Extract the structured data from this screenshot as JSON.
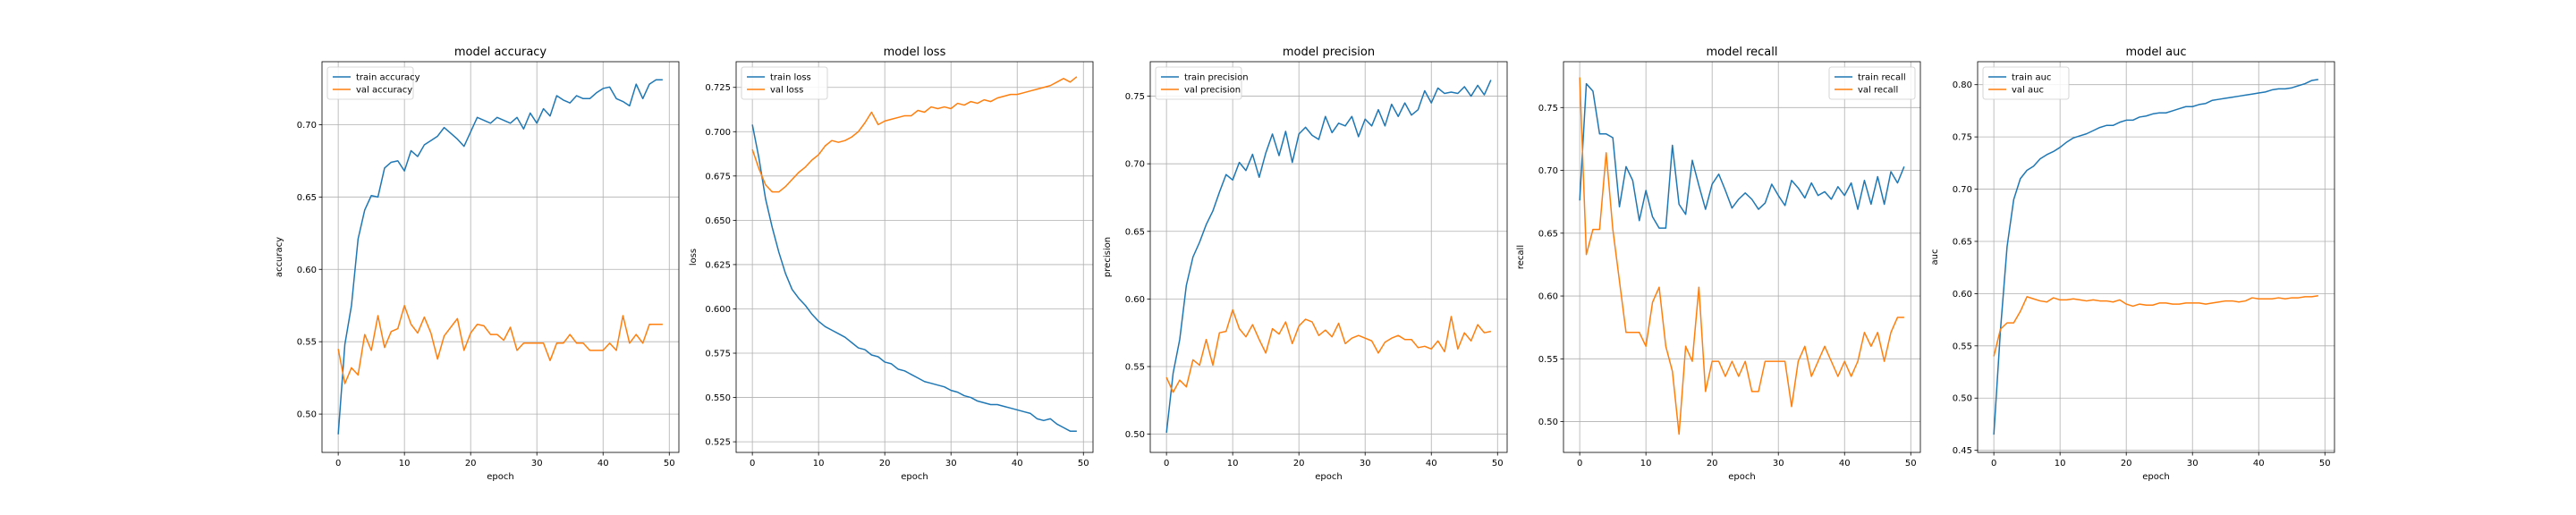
{
  "colors": {
    "train": "#1f77b4",
    "val": "#ff7f0e",
    "grid": "#b0b0b0",
    "axis": "#000000"
  },
  "chart_data": [
    {
      "type": "line",
      "title": "model accuracy",
      "xlabel": "epoch",
      "ylabel": "accuracy",
      "xlim": [
        -2.45,
        51.45
      ],
      "ylim": [
        0.4735,
        0.7435
      ],
      "xticks": [
        0,
        10,
        20,
        30,
        40,
        50
      ],
      "yticks": [
        0.5,
        0.55,
        0.6,
        0.65,
        0.7
      ],
      "ytick_labels": [
        "0.50",
        "0.55",
        "0.60",
        "0.65",
        "0.70"
      ],
      "grid": true,
      "legend": "upper left",
      "x": [
        0,
        1,
        2,
        3,
        4,
        5,
        6,
        7,
        8,
        9,
        10,
        11,
        12,
        13,
        14,
        15,
        16,
        17,
        18,
        19,
        20,
        21,
        22,
        23,
        24,
        25,
        26,
        27,
        28,
        29,
        30,
        31,
        32,
        33,
        34,
        35,
        36,
        37,
        38,
        39,
        40,
        41,
        42,
        43,
        44,
        45,
        46,
        47,
        48,
        49
      ],
      "series": [
        {
          "name": "train accuracy",
          "color_key": "train",
          "values": [
            0.486,
            0.548,
            0.575,
            0.621,
            0.641,
            0.651,
            0.65,
            0.67,
            0.674,
            0.675,
            0.668,
            0.682,
            0.678,
            0.686,
            0.689,
            0.692,
            0.698,
            0.694,
            0.69,
            0.685,
            0.695,
            0.705,
            0.703,
            0.701,
            0.705,
            0.703,
            0.701,
            0.705,
            0.697,
            0.708,
            0.701,
            0.711,
            0.706,
            0.72,
            0.717,
            0.715,
            0.72,
            0.718,
            0.718,
            0.722,
            0.725,
            0.726,
            0.718,
            0.716,
            0.713,
            0.728,
            0.718,
            0.728,
            0.731,
            0.731
          ]
        },
        {
          "name": "val accuracy",
          "color_key": "val",
          "values": [
            0.545,
            0.521,
            0.532,
            0.527,
            0.555,
            0.544,
            0.568,
            0.546,
            0.557,
            0.559,
            0.575,
            0.562,
            0.556,
            0.567,
            0.556,
            0.538,
            0.554,
            0.56,
            0.566,
            0.544,
            0.556,
            0.562,
            0.561,
            0.555,
            0.555,
            0.551,
            0.56,
            0.544,
            0.549,
            0.549,
            0.549,
            0.549,
            0.537,
            0.549,
            0.549,
            0.555,
            0.549,
            0.549,
            0.544,
            0.544,
            0.544,
            0.549,
            0.544,
            0.568,
            0.549,
            0.555,
            0.549,
            0.562,
            0.562,
            0.562
          ]
        }
      ]
    },
    {
      "type": "line",
      "title": "model loss",
      "xlabel": "epoch",
      "ylabel": "loss",
      "xlim": [
        -2.45,
        51.45
      ],
      "ylim": [
        0.519,
        0.7395
      ],
      "xticks": [
        0,
        10,
        20,
        30,
        40,
        50
      ],
      "yticks": [
        0.525,
        0.55,
        0.575,
        0.6,
        0.625,
        0.65,
        0.675,
        0.7,
        0.725
      ],
      "ytick_labels": [
        "0.525",
        "0.550",
        "0.575",
        "0.600",
        "0.625",
        "0.650",
        "0.675",
        "0.700",
        "0.725"
      ],
      "grid": true,
      "legend": "upper left",
      "x": [
        0,
        1,
        2,
        3,
        4,
        5,
        6,
        7,
        8,
        9,
        10,
        11,
        12,
        13,
        14,
        15,
        16,
        17,
        18,
        19,
        20,
        21,
        22,
        23,
        24,
        25,
        26,
        27,
        28,
        29,
        30,
        31,
        32,
        33,
        34,
        35,
        36,
        37,
        38,
        39,
        40,
        41,
        42,
        43,
        44,
        45,
        46,
        47,
        48,
        49
      ],
      "series": [
        {
          "name": "train loss",
          "color_key": "train",
          "values": [
            0.704,
            0.685,
            0.662,
            0.646,
            0.632,
            0.62,
            0.611,
            0.606,
            0.602,
            0.597,
            0.593,
            0.59,
            0.588,
            0.586,
            0.584,
            0.581,
            0.578,
            0.577,
            0.574,
            0.573,
            0.57,
            0.569,
            0.566,
            0.565,
            0.563,
            0.561,
            0.559,
            0.558,
            0.557,
            0.556,
            0.554,
            0.553,
            0.551,
            0.55,
            0.548,
            0.547,
            0.546,
            0.546,
            0.545,
            0.544,
            0.543,
            0.542,
            0.541,
            0.538,
            0.537,
            0.538,
            0.535,
            0.533,
            0.531,
            0.531
          ]
        },
        {
          "name": "val loss",
          "color_key": "val",
          "values": [
            0.69,
            0.679,
            0.67,
            0.666,
            0.666,
            0.669,
            0.673,
            0.677,
            0.68,
            0.684,
            0.687,
            0.692,
            0.695,
            0.694,
            0.695,
            0.697,
            0.7,
            0.705,
            0.711,
            0.704,
            0.706,
            0.707,
            0.708,
            0.709,
            0.709,
            0.712,
            0.711,
            0.714,
            0.713,
            0.714,
            0.713,
            0.716,
            0.715,
            0.717,
            0.716,
            0.718,
            0.717,
            0.719,
            0.72,
            0.721,
            0.721,
            0.722,
            0.723,
            0.724,
            0.725,
            0.726,
            0.728,
            0.73,
            0.728,
            0.731
          ]
        }
      ]
    },
    {
      "type": "line",
      "title": "model precision",
      "xlabel": "epoch",
      "ylabel": "precision",
      "xlim": [
        -2.45,
        51.45
      ],
      "ylim": [
        0.4865,
        0.7755
      ],
      "xticks": [
        0,
        10,
        20,
        30,
        40,
        50
      ],
      "yticks": [
        0.5,
        0.55,
        0.6,
        0.65,
        0.7,
        0.75
      ],
      "ytick_labels": [
        "0.50",
        "0.55",
        "0.60",
        "0.65",
        "0.70",
        "0.75"
      ],
      "grid": true,
      "legend": "upper left",
      "x": [
        0,
        1,
        2,
        3,
        4,
        5,
        6,
        7,
        8,
        9,
        10,
        11,
        12,
        13,
        14,
        15,
        16,
        17,
        18,
        19,
        20,
        21,
        22,
        23,
        24,
        25,
        26,
        27,
        28,
        29,
        30,
        31,
        32,
        33,
        34,
        35,
        36,
        37,
        38,
        39,
        40,
        41,
        42,
        43,
        44,
        45,
        46,
        47,
        48,
        49
      ],
      "series": [
        {
          "name": "train precision",
          "color_key": "train",
          "values": [
            0.501,
            0.545,
            0.57,
            0.61,
            0.631,
            0.642,
            0.655,
            0.665,
            0.679,
            0.692,
            0.688,
            0.701,
            0.695,
            0.707,
            0.69,
            0.708,
            0.722,
            0.706,
            0.724,
            0.701,
            0.722,
            0.727,
            0.721,
            0.718,
            0.735,
            0.723,
            0.73,
            0.728,
            0.735,
            0.72,
            0.733,
            0.728,
            0.74,
            0.728,
            0.744,
            0.735,
            0.745,
            0.736,
            0.74,
            0.754,
            0.745,
            0.756,
            0.752,
            0.753,
            0.752,
            0.757,
            0.75,
            0.758,
            0.751,
            0.762
          ]
        },
        {
          "name": "val precision",
          "color_key": "val",
          "values": [
            0.542,
            0.531,
            0.54,
            0.535,
            0.555,
            0.551,
            0.57,
            0.551,
            0.575,
            0.576,
            0.592,
            0.578,
            0.572,
            0.581,
            0.57,
            0.56,
            0.578,
            0.574,
            0.583,
            0.567,
            0.58,
            0.585,
            0.583,
            0.573,
            0.577,
            0.572,
            0.582,
            0.567,
            0.571,
            0.573,
            0.571,
            0.569,
            0.56,
            0.568,
            0.571,
            0.573,
            0.57,
            0.57,
            0.564,
            0.565,
            0.563,
            0.569,
            0.561,
            0.587,
            0.563,
            0.575,
            0.569,
            0.581,
            0.575,
            0.576
          ]
        }
      ]
    },
    {
      "type": "line",
      "title": "model recall",
      "xlabel": "epoch",
      "ylabel": "recall",
      "xlim": [
        -2.45,
        51.45
      ],
      "ylim": [
        0.4755,
        0.7865
      ],
      "xticks": [
        0,
        10,
        20,
        30,
        40,
        50
      ],
      "yticks": [
        0.5,
        0.55,
        0.6,
        0.65,
        0.7,
        0.75
      ],
      "ytick_labels": [
        "0.50",
        "0.55",
        "0.60",
        "0.65",
        "0.70",
        "0.75"
      ],
      "grid": true,
      "legend": "upper right",
      "x": [
        0,
        1,
        2,
        3,
        4,
        5,
        6,
        7,
        8,
        9,
        10,
        11,
        12,
        13,
        14,
        15,
        16,
        17,
        18,
        19,
        20,
        21,
        22,
        23,
        24,
        25,
        26,
        27,
        28,
        29,
        30,
        31,
        32,
        33,
        34,
        35,
        36,
        37,
        38,
        39,
        40,
        41,
        42,
        43,
        44,
        45,
        46,
        47,
        48,
        49
      ],
      "series": [
        {
          "name": "train recall",
          "color_key": "train",
          "values": [
            0.676,
            0.769,
            0.763,
            0.729,
            0.729,
            0.726,
            0.671,
            0.703,
            0.692,
            0.66,
            0.684,
            0.663,
            0.654,
            0.654,
            0.72,
            0.673,
            0.665,
            0.708,
            0.688,
            0.669,
            0.689,
            0.697,
            0.684,
            0.67,
            0.677,
            0.682,
            0.677,
            0.669,
            0.674,
            0.689,
            0.68,
            0.672,
            0.692,
            0.686,
            0.678,
            0.69,
            0.68,
            0.683,
            0.677,
            0.687,
            0.68,
            0.69,
            0.669,
            0.692,
            0.673,
            0.695,
            0.673,
            0.699,
            0.69,
            0.703
          ]
        },
        {
          "name": "val recall",
          "color_key": "val",
          "values": [
            0.774,
            0.633,
            0.653,
            0.653,
            0.714,
            0.653,
            0.612,
            0.571,
            0.571,
            0.571,
            0.56,
            0.595,
            0.607,
            0.56,
            0.54,
            0.49,
            0.56,
            0.548,
            0.607,
            0.524,
            0.548,
            0.548,
            0.536,
            0.548,
            0.536,
            0.548,
            0.524,
            0.524,
            0.548,
            0.548,
            0.548,
            0.548,
            0.512,
            0.548,
            0.56,
            0.536,
            0.548,
            0.56,
            0.548,
            0.536,
            0.548,
            0.536,
            0.548,
            0.571,
            0.56,
            0.571,
            0.548,
            0.571,
            0.583,
            0.583
          ]
        }
      ]
    },
    {
      "type": "line",
      "title": "model auc",
      "xlabel": "epoch",
      "ylabel": "auc",
      "xlim": [
        -2.45,
        51.45
      ],
      "ylim": [
        0.448,
        0.822
      ],
      "xticks": [
        0,
        10,
        20,
        30,
        40,
        50
      ],
      "yticks": [
        0.45,
        0.5,
        0.55,
        0.6,
        0.65,
        0.7,
        0.75,
        0.8
      ],
      "ytick_labels": [
        "0.45",
        "0.50",
        "0.55",
        "0.60",
        "0.65",
        "0.70",
        "0.75",
        "0.80"
      ],
      "grid": true,
      "legend": "upper left",
      "x": [
        0,
        1,
        2,
        3,
        4,
        5,
        6,
        7,
        8,
        9,
        10,
        11,
        12,
        13,
        14,
        15,
        16,
        17,
        18,
        19,
        20,
        21,
        22,
        23,
        24,
        25,
        26,
        27,
        28,
        29,
        30,
        31,
        32,
        33,
        34,
        35,
        36,
        37,
        38,
        39,
        40,
        41,
        42,
        43,
        44,
        45,
        46,
        47,
        48,
        49
      ],
      "series": [
        {
          "name": "train auc",
          "color_key": "train",
          "values": [
            0.465,
            0.565,
            0.645,
            0.69,
            0.71,
            0.718,
            0.722,
            0.729,
            0.733,
            0.736,
            0.74,
            0.745,
            0.749,
            0.751,
            0.753,
            0.756,
            0.759,
            0.761,
            0.761,
            0.764,
            0.766,
            0.766,
            0.769,
            0.77,
            0.772,
            0.773,
            0.773,
            0.775,
            0.777,
            0.779,
            0.779,
            0.781,
            0.782,
            0.785,
            0.786,
            0.787,
            0.788,
            0.789,
            0.79,
            0.791,
            0.792,
            0.793,
            0.795,
            0.796,
            0.796,
            0.797,
            0.799,
            0.801,
            0.804,
            0.805
          ]
        },
        {
          "name": "val auc",
          "color_key": "val",
          "values": [
            0.54,
            0.566,
            0.572,
            0.572,
            0.583,
            0.597,
            0.595,
            0.593,
            0.592,
            0.596,
            0.594,
            0.594,
            0.595,
            0.594,
            0.593,
            0.594,
            0.593,
            0.593,
            0.592,
            0.594,
            0.59,
            0.588,
            0.59,
            0.589,
            0.589,
            0.591,
            0.591,
            0.59,
            0.59,
            0.591,
            0.591,
            0.591,
            0.59,
            0.591,
            0.592,
            0.593,
            0.593,
            0.592,
            0.593,
            0.596,
            0.595,
            0.595,
            0.595,
            0.596,
            0.595,
            0.596,
            0.596,
            0.597,
            0.597,
            0.598
          ]
        }
      ]
    }
  ]
}
